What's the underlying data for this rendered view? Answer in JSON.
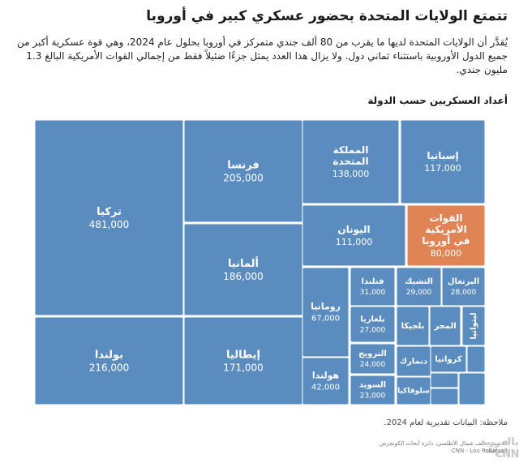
{
  "header": {
    "title": "تتمتع الولايات المتحدة بحضور عسكري كبير في أوروبا",
    "subtitle": "يُقدَّر أن الولايات المتحدة لديها ما يقرب من 80 ألف جندي متمركز في أوروبا بحلول عام 2024، وهي قوة عسكرية أكبر من جميع الدول الأوروبية باستثناء ثماني دول. ولا يزال هذا العدد يمثل جزءًا ضئيلاً فقط من إجمالي القوات الأمريكية البالغ 1.3 مليون جندي."
  },
  "chart_heading": "أعداد العسكريين حسب الدولة",
  "colors": {
    "tile": "#5b8cc0",
    "highlight": "#e08456",
    "border": "#ffffff"
  },
  "chart_data": {
    "type": "treemap",
    "unit": "soldiers",
    "items": [
      {
        "name": "تركيا",
        "value": 481000,
        "value_label": "481,000"
      },
      {
        "name": "بولندا",
        "value": 216000,
        "value_label": "216,000"
      },
      {
        "name": "فرنسا",
        "value": 205000,
        "value_label": "205,000"
      },
      {
        "name": "ألمانيا",
        "value": 186000,
        "value_label": "186,000"
      },
      {
        "name": "إيطاليا",
        "value": 171000,
        "value_label": "171,000"
      },
      {
        "name": "المملكة المتحدة",
        "value": 138000,
        "value_label": "138,000"
      },
      {
        "name": "إسبانيا",
        "value": 117000,
        "value_label": "117,000"
      },
      {
        "name": "اليونان",
        "value": 111000,
        "value_label": "111,000"
      },
      {
        "name": "القوات الأمريكية في أوروبا",
        "value": 80000,
        "value_label": "80,000",
        "highlight": true
      },
      {
        "name": "رومانيا",
        "value": 67000,
        "value_label": "67,000"
      },
      {
        "name": "هولندا",
        "value": 42000,
        "value_label": "42,000"
      },
      {
        "name": "فنلندا",
        "value": 31000,
        "value_label": "31,000"
      },
      {
        "name": "التشيك",
        "value": 29000,
        "value_label": "29,000"
      },
      {
        "name": "البرتغال",
        "value": 28000,
        "value_label": "28,000"
      },
      {
        "name": "بلغاريا",
        "value": 27000,
        "value_label": "27,000"
      },
      {
        "name": "النرويج",
        "value": 24000,
        "value_label": "24,000"
      },
      {
        "name": "السويد",
        "value": 23000,
        "value_label": "23,000"
      },
      {
        "name": "بلجيكا",
        "value": null,
        "value_label": ""
      },
      {
        "name": "المجر",
        "value": null,
        "value_label": ""
      },
      {
        "name": "ليتوانيا",
        "value": null,
        "value_label": ""
      },
      {
        "name": "دنمارك",
        "value": null,
        "value_label": ""
      },
      {
        "name": "كرواتيا",
        "value": null,
        "value_label": ""
      },
      {
        "name": "سلوفاكيا",
        "value": null,
        "value_label": ""
      },
      {
        "name": "",
        "value": null,
        "value_label": ""
      },
      {
        "name": "",
        "value": null,
        "value_label": ""
      },
      {
        "name": "",
        "value": null,
        "value_label": ""
      },
      {
        "name": "",
        "value": null,
        "value_label": ""
      }
    ]
  },
  "footer": {
    "note": "ملاحظة: البيانات تقديرية لعام 2024.",
    "source": "المصدر: حلف شمال الأطلسي، دائرة أبحاث الكونجرس",
    "graphic_label": "الجرافيك:",
    "credit": "CNN - Lou Robinson",
    "logo": "بالعربية CNN"
  }
}
